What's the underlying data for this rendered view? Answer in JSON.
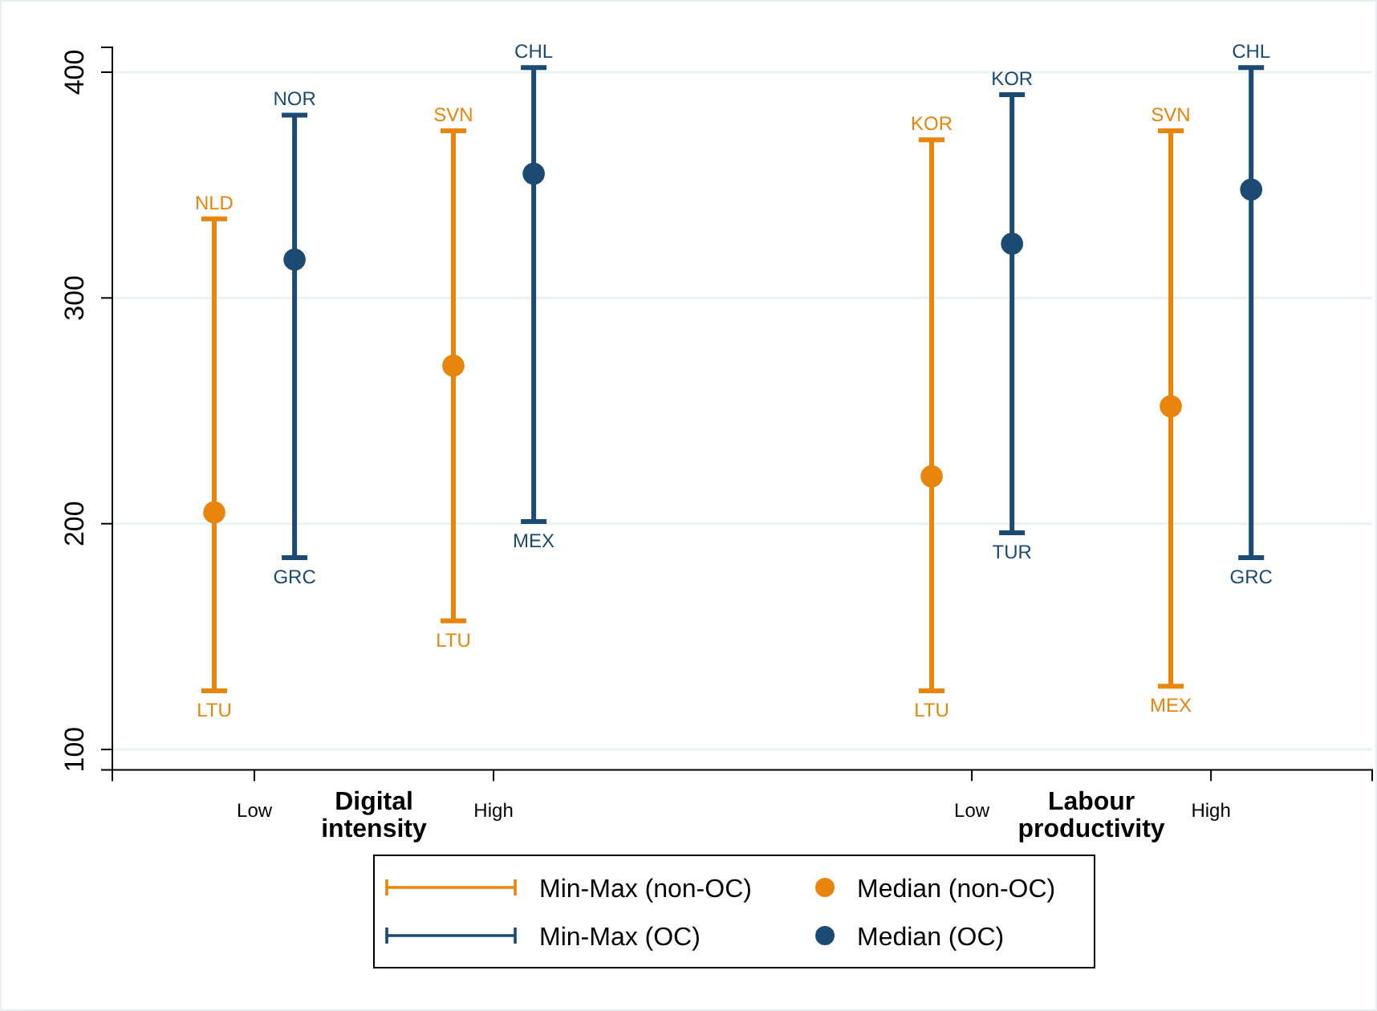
{
  "chart_data": {
    "type": "bar",
    "categories": [
      "Low",
      "High",
      null,
      "Low",
      "High"
    ],
    "ylim": [
      91,
      411
    ],
    "yticks": [
      100,
      200,
      300,
      400
    ],
    "grid": "y",
    "legend": "bottom",
    "marker": "circle",
    "series": [
      {
        "name": "Min-Max (non-OC)",
        "color": "#e8850c",
        "base": [
          126,
          157,
          null,
          126,
          128
        ],
        "values": [
          209,
          217,
          null,
          244,
          246
        ]
      },
      {
        "name": "Min-Max (OC)",
        "color": "#1b4a73",
        "base": [
          185,
          201,
          null,
          196,
          185
        ],
        "values": [
          196,
          201,
          null,
          194,
          217
        ]
      },
      {
        "name": "Median (non-OC)",
        "type": "scatter",
        "color": "#e8850c",
        "values": [
          205,
          270,
          null,
          221,
          252
        ]
      },
      {
        "name": "Median (OC)",
        "type": "scatter",
        "color": "#1b4a73",
        "values": [
          317,
          355,
          null,
          324,
          348
        ]
      }
    ],
    "annotations": [
      "NLD",
      "LTU",
      "SVN",
      "LTU",
      "KOR",
      "LTU",
      "SVN",
      "MEX",
      "NOR",
      "GRC",
      "CHL",
      "MEX",
      "KOR",
      "TUR",
      "CHL",
      "GRC",
      "Digital intensity",
      "Labour productivity"
    ]
  }
}
